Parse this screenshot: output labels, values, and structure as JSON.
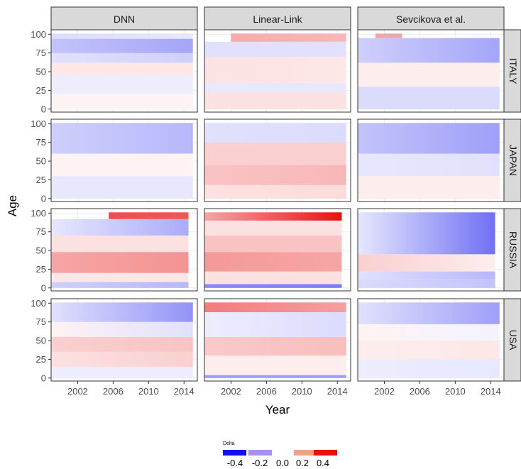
{
  "chart_data": {
    "type": "heatmap",
    "x_label": "Year",
    "y_label": "Age",
    "x_ticks": [
      2002,
      2006,
      2010,
      2014
    ],
    "y_ticks": [
      0,
      25,
      50,
      75,
      100
    ],
    "x_range": [
      1999,
      2015.5
    ],
    "y_range": [
      -4,
      106
    ],
    "columns": [
      "DNN",
      "Linear-Link",
      "Sevcikova et al."
    ],
    "rows": [
      "ITALY",
      "JAPAN",
      "RUSSIA",
      "USA"
    ],
    "last_year": {
      "ITALY": 2015,
      "JAPAN": 2015,
      "RUSSIA": 2014.5,
      "USA": 2015
    },
    "legend": {
      "title": "Delta",
      "breaks": [
        -0.4,
        -0.2,
        0.0,
        0.2,
        0.4
      ],
      "labels": [
        "-0.4",
        "-0.2",
        "0.0",
        "0.2",
        "0.4"
      ],
      "colors": [
        "#1010f0",
        "#a890f0",
        "#ffffff",
        "#f4a088",
        "#e81010"
      ]
    },
    "panels": [
      {
        "row": "ITALY",
        "col": "DNN",
        "bands": [
          {
            "age": [
              0,
              20
            ],
            "years": [
              1999,
              2015
            ],
            "delta": [
              0.02,
              0.02
            ]
          },
          {
            "age": [
              20,
              45
            ],
            "years": [
              1999,
              2015
            ],
            "delta": [
              -0.03,
              -0.03
            ]
          },
          {
            "age": [
              45,
              62
            ],
            "years": [
              1999,
              2015
            ],
            "delta": [
              0.04,
              0.04
            ]
          },
          {
            "age": [
              62,
              75
            ],
            "years": [
              1999,
              2015
            ],
            "delta": [
              -0.05,
              -0.08
            ]
          },
          {
            "age": [
              75,
              94
            ],
            "years": [
              1999,
              2015
            ],
            "delta": [
              -0.1,
              -0.15
            ]
          },
          {
            "age": [
              94,
              101
            ],
            "years": [
              1999,
              2015
            ],
            "delta": [
              -0.06,
              -0.04
            ]
          }
        ]
      },
      {
        "row": "ITALY",
        "col": "Linear-Link",
        "bands": [
          {
            "age": [
              0,
              22
            ],
            "years": [
              1999,
              2015
            ],
            "delta": [
              0.05,
              0.05
            ]
          },
          {
            "age": [
              22,
              35
            ],
            "years": [
              1999,
              2015
            ],
            "delta": [
              -0.04,
              -0.04
            ]
          },
          {
            "age": [
              35,
              70
            ],
            "years": [
              1999,
              2015
            ],
            "delta": [
              0.05,
              0.04
            ]
          },
          {
            "age": [
              70,
              90
            ],
            "years": [
              1999,
              2015
            ],
            "delta": [
              -0.05,
              -0.05
            ]
          },
          {
            "age": [
              90,
              101
            ],
            "years": [
              2002,
              2015
            ],
            "delta": [
              0.14,
              0.12
            ]
          }
        ]
      },
      {
        "row": "ITALY",
        "col": "Sevcikova et al.",
        "bands": [
          {
            "age": [
              0,
              30
            ],
            "years": [
              1999,
              2015
            ],
            "delta": [
              -0.06,
              -0.06
            ]
          },
          {
            "age": [
              30,
              62
            ],
            "years": [
              1999,
              2015
            ],
            "delta": [
              0.03,
              0.03
            ]
          },
          {
            "age": [
              62,
              95
            ],
            "years": [
              1999,
              2015
            ],
            "delta": [
              -0.08,
              -0.15
            ]
          },
          {
            "age": [
              95,
              101
            ],
            "years": [
              2001,
              2004
            ],
            "delta": [
              0.15,
              0.15
            ]
          }
        ]
      },
      {
        "row": "JAPAN",
        "col": "DNN",
        "bands": [
          {
            "age": [
              0,
              30
            ],
            "years": [
              1999,
              2015
            ],
            "delta": [
              -0.04,
              -0.04
            ]
          },
          {
            "age": [
              30,
              60
            ],
            "years": [
              1999,
              2015
            ],
            "delta": [
              0.02,
              0.02
            ]
          },
          {
            "age": [
              60,
              101
            ],
            "years": [
              1999,
              2015
            ],
            "delta": [
              -0.08,
              -0.12
            ]
          }
        ]
      },
      {
        "row": "JAPAN",
        "col": "Linear-Link",
        "bands": [
          {
            "age": [
              0,
              18
            ],
            "years": [
              1999,
              2015
            ],
            "delta": [
              0.05,
              0.06
            ]
          },
          {
            "age": [
              18,
              45
            ],
            "years": [
              1999,
              2015
            ],
            "delta": [
              0.1,
              0.12
            ]
          },
          {
            "age": [
              45,
              75
            ],
            "years": [
              1999,
              2015
            ],
            "delta": [
              0.08,
              0.08
            ]
          },
          {
            "age": [
              75,
              101
            ],
            "years": [
              1999,
              2015
            ],
            "delta": [
              -0.05,
              -0.06
            ]
          }
        ]
      },
      {
        "row": "JAPAN",
        "col": "Sevcikova et al.",
        "bands": [
          {
            "age": [
              0,
              30
            ],
            "years": [
              1999,
              2015
            ],
            "delta": [
              0.03,
              0.03
            ]
          },
          {
            "age": [
              30,
              60
            ],
            "years": [
              1999,
              2015
            ],
            "delta": [
              -0.04,
              -0.05
            ]
          },
          {
            "age": [
              60,
              101
            ],
            "years": [
              1999,
              2015
            ],
            "delta": [
              -0.1,
              -0.16
            ]
          }
        ]
      },
      {
        "row": "RUSSIA",
        "col": "DNN",
        "bands": [
          {
            "age": [
              0,
              8
            ],
            "years": [
              1999,
              2014.5
            ],
            "delta": [
              -0.08,
              -0.12
            ]
          },
          {
            "age": [
              8,
              20
            ],
            "years": [
              1999,
              2014.5
            ],
            "delta": [
              0.04,
              0.04
            ]
          },
          {
            "age": [
              20,
              48
            ],
            "years": [
              1999,
              2014.5
            ],
            "delta": [
              0.15,
              0.18
            ]
          },
          {
            "age": [
              48,
              70
            ],
            "years": [
              1999,
              2014.5
            ],
            "delta": [
              0.05,
              0.05
            ]
          },
          {
            "age": [
              70,
              92
            ],
            "years": [
              1999,
              2014.5
            ],
            "delta": [
              -0.04,
              -0.14
            ]
          },
          {
            "age": [
              92,
              101
            ],
            "years": [
              2005.5,
              2014.5
            ],
            "delta": [
              0.3,
              0.28
            ]
          }
        ]
      },
      {
        "row": "RUSSIA",
        "col": "Linear-Link",
        "bands": [
          {
            "age": [
              0,
              5
            ],
            "years": [
              1999,
              2014.5
            ],
            "delta": [
              -0.2,
              -0.22
            ]
          },
          {
            "age": [
              5,
              22
            ],
            "years": [
              1999,
              2014.5
            ],
            "delta": [
              0.05,
              0.05
            ]
          },
          {
            "age": [
              22,
              48
            ],
            "years": [
              1999,
              2014.5
            ],
            "delta": [
              0.17,
              0.15
            ]
          },
          {
            "age": [
              48,
              70
            ],
            "years": [
              1999,
              2014.5
            ],
            "delta": [
              0.1,
              0.1
            ]
          },
          {
            "age": [
              70,
              90
            ],
            "years": [
              1999,
              2014.5
            ],
            "delta": [
              0.05,
              0.05
            ]
          },
          {
            "age": [
              90,
              101
            ],
            "years": [
              1999,
              2014.5
            ],
            "delta": [
              0.15,
              0.4
            ]
          }
        ]
      },
      {
        "row": "RUSSIA",
        "col": "Sevcikova et al.",
        "bands": [
          {
            "age": [
              0,
              12
            ],
            "years": [
              1999,
              2014.5
            ],
            "delta": [
              -0.06,
              -0.1
            ]
          },
          {
            "age": [
              12,
              22
            ],
            "years": [
              1999,
              2014.5
            ],
            "delta": [
              -0.05,
              -0.12
            ]
          },
          {
            "age": [
              22,
              45
            ],
            "years": [
              1999,
              2014.5
            ],
            "delta": [
              0.08,
              0.03
            ]
          },
          {
            "age": [
              45,
              101
            ],
            "years": [
              1999,
              2014.5
            ],
            "delta": [
              -0.04,
              -0.24
            ]
          }
        ]
      },
      {
        "row": "USA",
        "col": "DNN",
        "bands": [
          {
            "age": [
              0,
              15
            ],
            "years": [
              1999,
              2015
            ],
            "delta": [
              -0.03,
              -0.03
            ]
          },
          {
            "age": [
              15,
              35
            ],
            "years": [
              1999,
              2015
            ],
            "delta": [
              0.05,
              0.08
            ]
          },
          {
            "age": [
              35,
              55
            ],
            "years": [
              1999,
              2015
            ],
            "delta": [
              0.08,
              0.1
            ]
          },
          {
            "age": [
              55,
              75
            ],
            "years": [
              1999,
              2015
            ],
            "delta": [
              0.02,
              -0.05
            ]
          },
          {
            "age": [
              75,
              101
            ],
            "years": [
              1999,
              2015
            ],
            "delta": [
              -0.05,
              -0.18
            ]
          }
        ]
      },
      {
        "row": "USA",
        "col": "Linear-Link",
        "bands": [
          {
            "age": [
              0,
              4
            ],
            "years": [
              1999,
              2015
            ],
            "delta": [
              -0.16,
              -0.16
            ]
          },
          {
            "age": [
              4,
              30
            ],
            "years": [
              1999,
              2015
            ],
            "delta": [
              0.03,
              0.03
            ]
          },
          {
            "age": [
              30,
              55
            ],
            "years": [
              1999,
              2015
            ],
            "delta": [
              0.09,
              0.11
            ]
          },
          {
            "age": [
              55,
              88
            ],
            "years": [
              1999,
              2015
            ],
            "delta": [
              -0.03,
              -0.06
            ]
          },
          {
            "age": [
              88,
              101
            ],
            "years": [
              1999,
              2015
            ],
            "delta": [
              0.22,
              0.16
            ]
          }
        ]
      },
      {
        "row": "USA",
        "col": "Sevcikova et al.",
        "bands": [
          {
            "age": [
              0,
              25
            ],
            "years": [
              1999,
              2015
            ],
            "delta": [
              -0.03,
              -0.04
            ]
          },
          {
            "age": [
              25,
              50
            ],
            "years": [
              1999,
              2015
            ],
            "delta": [
              0.03,
              0.04
            ]
          },
          {
            "age": [
              50,
              72
            ],
            "years": [
              1999,
              2015
            ],
            "delta": [
              0.02,
              -0.02
            ]
          },
          {
            "age": [
              72,
              101
            ],
            "years": [
              1999,
              2015
            ],
            "delta": [
              -0.05,
              -0.16
            ]
          }
        ]
      }
    ]
  }
}
